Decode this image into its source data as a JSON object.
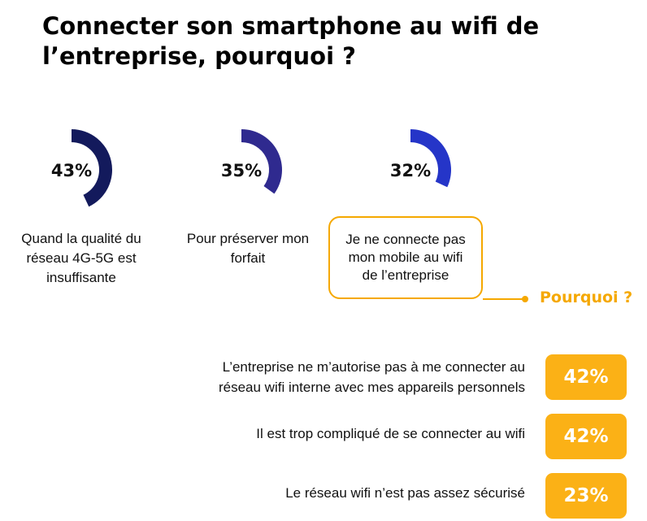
{
  "title": "Connecter son smartphone au wifi de l’entreprise, pourquoi ?",
  "colors": {
    "accent": "#f5a800",
    "badge": "#fbb116",
    "donut_1": "#131a5c",
    "donut_2": "#2f2a8f",
    "donut_3": "#2535c8"
  },
  "chart_data": [
    {
      "type": "pie",
      "categories": [
        "Quand la qualité du réseau 4G-5G est insuffisante",
        "Pour préserver mon forfait",
        "Je ne connecte pas mon mobile au wifi de l’entreprise"
      ],
      "values": [
        43,
        35,
        32
      ],
      "value_labels": [
        "43%",
        "35%",
        "32%"
      ],
      "unit": "%"
    },
    {
      "type": "bar",
      "title": "Pourquoi ?",
      "categories": [
        "L’entreprise ne m’autorise pas à me connecter au réseau wifi interne avec mes appareils personnels",
        "Il est trop compliqué de se connecter au wifi",
        "Le réseau wifi n’est pas assez sécurisé"
      ],
      "values": [
        42,
        42,
        23
      ],
      "value_labels": [
        "42%",
        "42%",
        "23%"
      ],
      "unit": "%"
    }
  ],
  "stats": [
    {
      "value": 43,
      "pct_label": "43%",
      "label": "Quand la qualité du réseau 4G-5G est insuffisante",
      "color": "#131a5c"
    },
    {
      "value": 35,
      "pct_label": "35%",
      "label": "Pour préserver mon forfait",
      "color": "#2f2a8f"
    },
    {
      "value": 32,
      "pct_label": "32%",
      "label": "Je ne connecte pas mon mobile au wifi de l’entreprise",
      "color": "#2535c8"
    }
  ],
  "why_label": "Pourquoi ?",
  "reasons": [
    {
      "text_line1": "L’entreprise ne m’autorise pas à me connecter au",
      "text_line2": "réseau wifi interne avec mes appareils personnels",
      "pct_label": "42%"
    },
    {
      "text_line1": "Il est trop compliqué de se connecter au wifi",
      "pct_label": "42%"
    },
    {
      "text_line1": "Le réseau wifi n’est pas assez sécurisé",
      "pct_label": "23%"
    }
  ]
}
